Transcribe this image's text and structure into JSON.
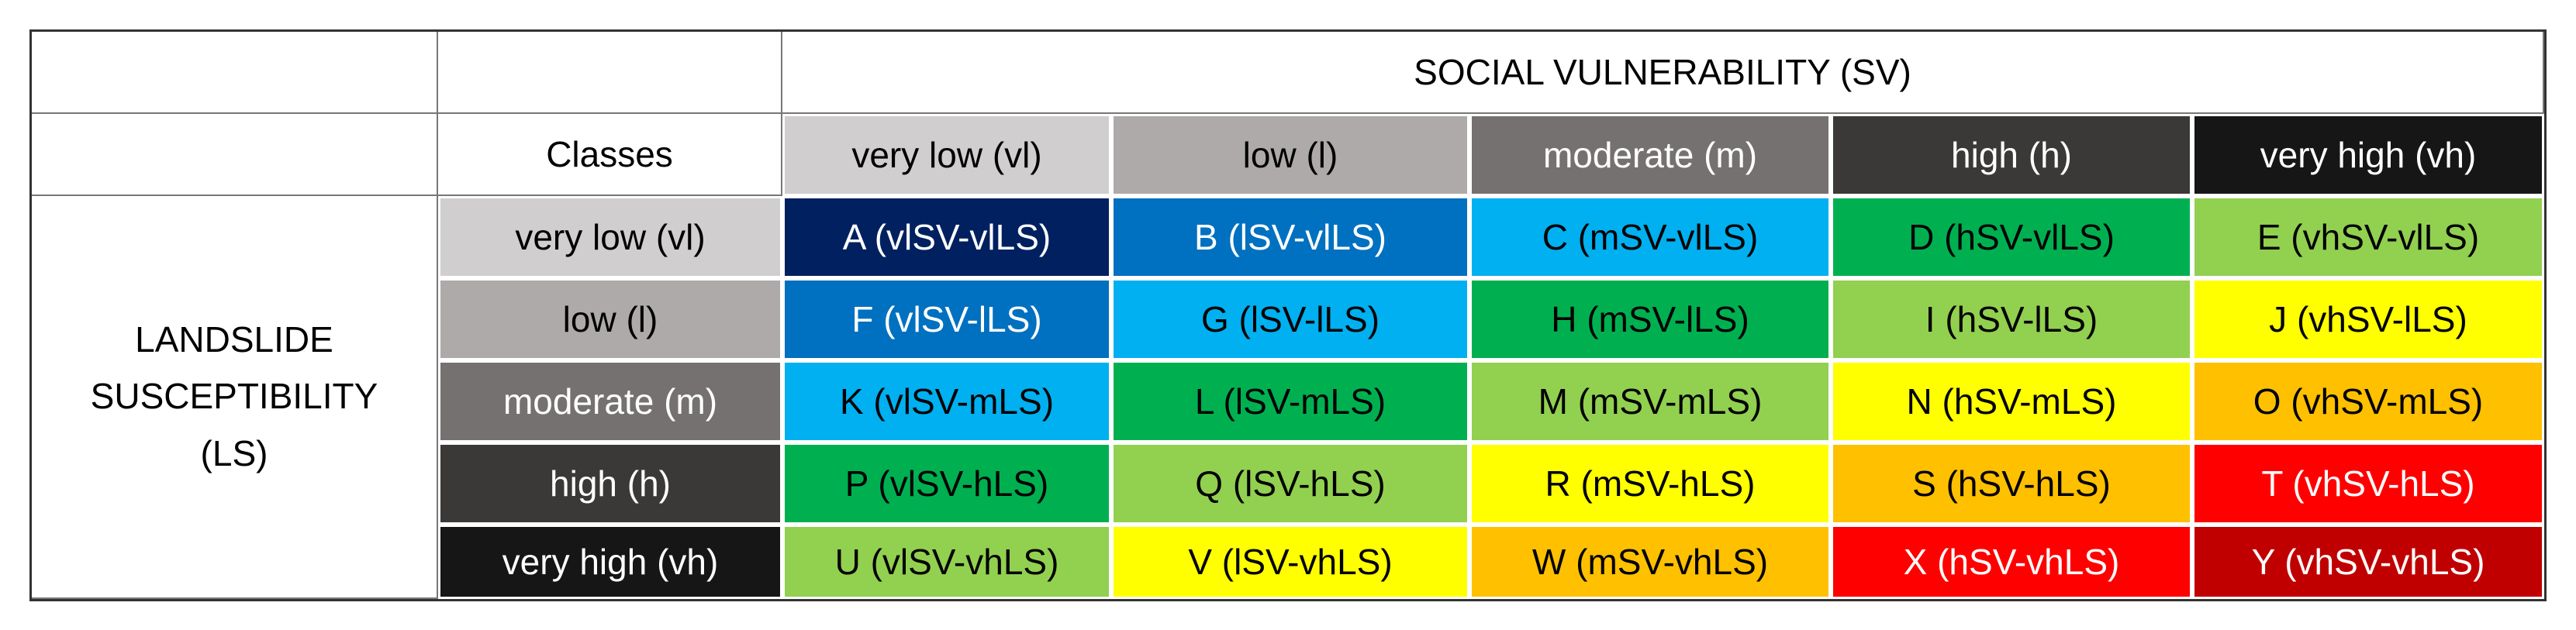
{
  "table": {
    "title": "SOCIAL VULNERABILITY (SV)",
    "classes_label": "Classes",
    "row_axis_label": [
      "LANDSLIDE",
      "SUSCEPTIBILITY",
      "(LS)"
    ],
    "columns": [
      "very low (vl)",
      "low (l)",
      "moderate (m)",
      "high (h)",
      "very high (vh)"
    ],
    "rows": [
      {
        "label": "very low (vl)",
        "cells": [
          "A (vlSV-vlLS)",
          "B (lSV-vlLS)",
          "C (mSV-vlLS)",
          "D (hSV-vlLS)",
          "E (vhSV-vlLS)"
        ]
      },
      {
        "label": "low (l)",
        "cells": [
          "F (vlSV-lLS)",
          "G (lSV-lLS)",
          "H (mSV-lLS)",
          "I (hSV-lLS)",
          "J (vhSV-lLS)"
        ]
      },
      {
        "label": "moderate (m)",
        "cells": [
          "K (vlSV-mLS)",
          "L (lSV-mLS)",
          "M (mSV-mLS)",
          "N (hSV-mLS)",
          "O (vhSV-mLS)"
        ]
      },
      {
        "label": "high (h)",
        "cells": [
          "P (vlSV-hLS)",
          "Q (lSV-hLS)",
          "R (mSV-hLS)",
          "S (hSV-hLS)",
          "T (vhSV-hLS)"
        ]
      },
      {
        "label": "very high (vh)",
        "cells": [
          "U (vlSV-vhLS)",
          "V (lSV-vhLS)",
          "W (mSV-vhLS)",
          "X (hSV-vhLS)",
          "Y (vhSV-vhLS)"
        ]
      }
    ]
  }
}
